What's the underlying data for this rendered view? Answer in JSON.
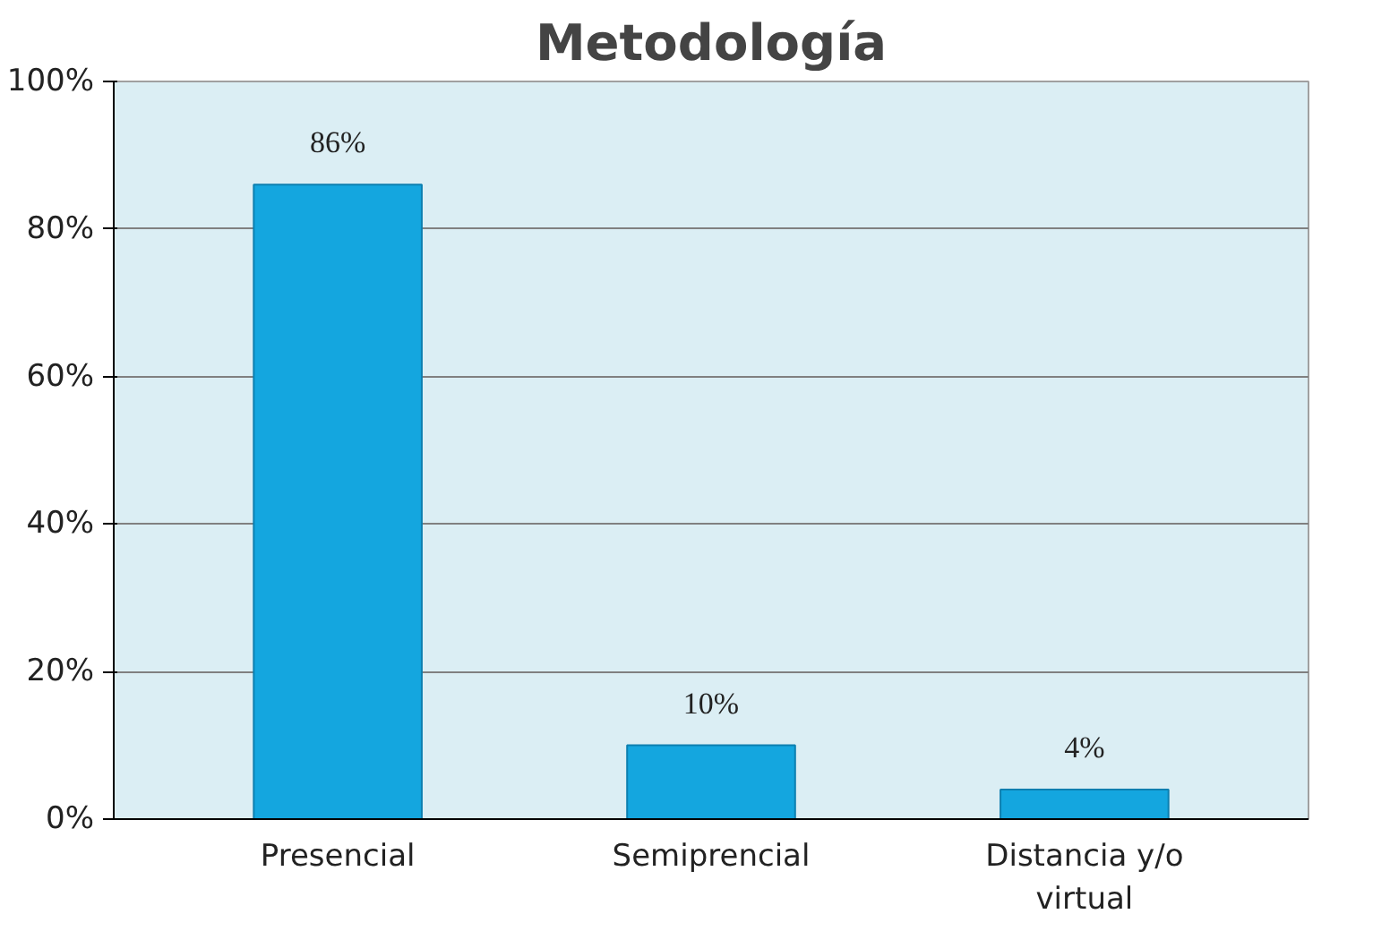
{
  "chart_data": {
    "type": "bar",
    "title": "Metodología",
    "categories": [
      "Presencial",
      "Semiprencial",
      "Distancia y/o virtual"
    ],
    "values": [
      86,
      10,
      4
    ],
    "color": "#14a6df",
    "value_labels": [
      "86%",
      "10%",
      "4%"
    ],
    "ylim": [
      0,
      100
    ],
    "yticks": [
      {
        "value": 0,
        "label": "0%"
      },
      {
        "value": 20,
        "label": "20%"
      },
      {
        "value": 40,
        "label": "40%"
      },
      {
        "value": 60,
        "label": "60%"
      },
      {
        "value": 80,
        "label": "80%"
      },
      {
        "value": 100,
        "label": "100%"
      }
    ],
    "grid": "y"
  }
}
